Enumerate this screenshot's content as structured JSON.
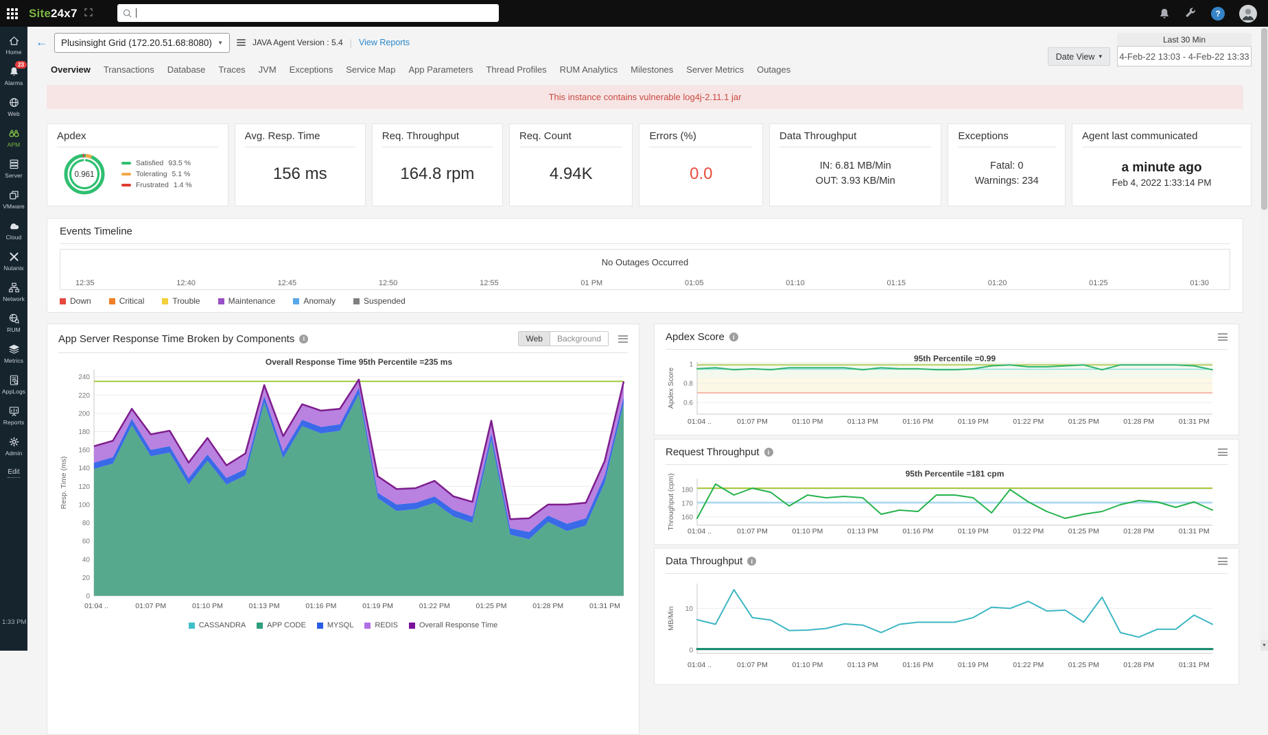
{
  "topbar": {
    "logo_site": "Site",
    "logo_suffix": "24x7",
    "search_value": ""
  },
  "sidebar": {
    "items": [
      "Home",
      "Alarms",
      "Web",
      "APM",
      "Server",
      "VMware",
      "Cloud",
      "Nutanix",
      "Network",
      "RUM",
      "Metrics",
      "AppLogs",
      "Reports",
      "Admin"
    ],
    "active_item": "APM",
    "alarm_count": "23",
    "edit_label": "Edit",
    "time": "1:33 PM"
  },
  "header": {
    "monitor_name": "Plusinsight Grid (172.20.51.68:8080)",
    "agent_version": "JAVA Agent Version : 5.4",
    "view_reports": "View Reports",
    "date_view_label": "Date View",
    "range_preset": "Last 30 Min",
    "range_value": "4-Feb-22 13:03 - 4-Feb-22 13:33"
  },
  "tabs": {
    "items": [
      "Overview",
      "Transactions",
      "Database",
      "Traces",
      "JVM",
      "Exceptions",
      "Service Map",
      "App Parameters",
      "Thread Profiles",
      "RUM Analytics",
      "Milestones",
      "Server Metrics",
      "Outages"
    ],
    "active_index": 0
  },
  "banner": {
    "text": "This instance contains vulnerable log4j-2.11.1 jar",
    "bg": "#f7e5e5",
    "color": "#c8493f"
  },
  "cards": {
    "apdex": {
      "title": "Apdex",
      "gauge": {
        "score": "0.961",
        "satisfied": 93.5,
        "tolerating": 5.1,
        "frustrated": 1.4
      },
      "legend": [
        {
          "label": "Satisfied",
          "value": "93.5 %",
          "color": "#2fbf71"
        },
        {
          "label": "Tolerating",
          "value": "5.1 %",
          "color": "#f2a74b"
        },
        {
          "label": "Frustrated",
          "value": "1.4 %",
          "color": "#e03c31"
        }
      ]
    },
    "avg_resp_time": {
      "title": "Avg. Resp. Time",
      "value": "156 ms"
    },
    "req_throughput": {
      "title": "Req. Throughput",
      "value": "164.8 rpm"
    },
    "req_count": {
      "title": "Req. Count",
      "value": "4.94K"
    },
    "errors": {
      "title": "Errors (%)",
      "value": "0.0",
      "color": "#e74c3c"
    },
    "data_throughput": {
      "title": "Data Throughput",
      "line1": "IN: 6.81 MB/Min",
      "line2": "OUT: 3.93 KB/Min"
    },
    "exceptions": {
      "title": "Exceptions",
      "line1": "Fatal: 0",
      "line2": "Warnings: 234"
    },
    "agent": {
      "title": "Agent last communicated",
      "value": "a minute ago",
      "sub": "Feb 4, 2022 1:33:14 PM"
    }
  },
  "events": {
    "title": "Events Timeline",
    "message": "No Outages Occurred",
    "ticks": [
      "12:35",
      "12:40",
      "12:45",
      "12:50",
      "12:55",
      "01 PM",
      "01:05",
      "01:10",
      "01:15",
      "01:20",
      "01:25",
      "01:30"
    ],
    "legend": [
      {
        "label": "Down",
        "color": "#e5493d"
      },
      {
        "label": "Critical",
        "color": "#f07f27"
      },
      {
        "label": "Trouble",
        "color": "#f3cf3a"
      },
      {
        "label": "Maintenance",
        "color": "#9a4fc6"
      },
      {
        "label": "Anomaly",
        "color": "#58a8e8"
      },
      {
        "label": "Suspended",
        "color": "#808080"
      }
    ]
  },
  "sections": {
    "response": {
      "title": "App Server Response Time Broken by Components",
      "toggle_web": "Web",
      "toggle_background": "Background",
      "toggle_active": "Web"
    },
    "apdex_score": {
      "title": "Apdex Score"
    },
    "request_throughput": {
      "title": "Request Throughput"
    },
    "data_throughput": {
      "title": "Data Throughput"
    }
  },
  "chart_data": [
    {
      "id": "response_time",
      "type": "area",
      "title": "Overall Response Time 95th Percentile =235 ms",
      "ylabel": "Resp. Time (ms)",
      "ymin": 0,
      "ymax": 248,
      "yticks": [
        0,
        20,
        40,
        60,
        80,
        100,
        120,
        140,
        160,
        180,
        200,
        220,
        240
      ],
      "xlabels": [
        "01:04 ..",
        "01:07 PM",
        "01:10 PM",
        "01:13 PM",
        "01:16 PM",
        "01:19 PM",
        "01:22 PM",
        "01:25 PM",
        "01:28 PM",
        "01:31 PM"
      ],
      "xstep": 3,
      "hlines": [
        {
          "value": 235,
          "color": "#a2c93c",
          "width": 2
        }
      ],
      "stack": [
        {
          "name": "APP CODE",
          "color": "#57a98d",
          "values": [
            139,
            145,
            187,
            153,
            157,
            122,
            148,
            122,
            132,
            212,
            151,
            186,
            178,
            181,
            221,
            107,
            93,
            95,
            102,
            87,
            80,
            171,
            67,
            62,
            81,
            71,
            77,
            124,
            211
          ]
        },
        {
          "name": "MYSQL",
          "color": "#3a6ae8",
          "values": [
            146,
            152,
            194,
            160,
            164,
            129,
            155,
            129,
            139,
            219,
            158,
            193,
            185,
            188,
            228,
            113,
            100,
            102,
            109,
            94,
            87,
            178,
            74,
            70,
            88,
            79,
            85,
            132,
            218
          ]
        },
        {
          "name": "REDIS",
          "color": "#b981e0",
          "values": [
            164,
            170,
            205,
            177,
            181,
            146,
            173,
            143,
            156,
            231,
            175,
            210,
            203,
            205,
            237,
            131,
            117,
            118,
            126,
            109,
            103,
            192,
            84,
            85,
            100,
            100,
            102,
            148,
            235
          ]
        }
      ],
      "line": {
        "name": "Overall Response Time",
        "color": "#7d1d8d",
        "width": 2.5
      },
      "legend": [
        {
          "label": "CASSANDRA",
          "color": "#40c0c8"
        },
        {
          "label": "APP CODE",
          "color": "#2f9e7d"
        },
        {
          "label": "MYSQL",
          "color": "#2b5ce6"
        },
        {
          "label": "REDIS",
          "color": "#b06fe3"
        },
        {
          "label": "Overall Response Time",
          "color": "#7a129b"
        }
      ]
    },
    {
      "id": "apdex_score",
      "type": "line",
      "title": "95th Percentile =0.99",
      "ylabel": "Apdex  Score",
      "ymin": 0.48,
      "ymax": 1.02,
      "yticks": [
        0.6,
        0.8,
        1
      ],
      "ytick_labels": [
        "0.6",
        "0.8",
        "1"
      ],
      "xlabels": [
        "01:04 ..",
        "01:07 PM",
        "01:10 PM",
        "01:13 PM",
        "01:16 PM",
        "01:19 PM",
        "01:22 PM",
        "01:25 PM",
        "01:28 PM",
        "01:31 PM"
      ],
      "xstep": 3,
      "bands": [
        {
          "from": 0.85,
          "to": 1.02,
          "color": "rgba(139,195,74,0.10)"
        },
        {
          "from": 0.7,
          "to": 0.85,
          "color": "rgba(252,243,207,0.55)"
        }
      ],
      "hlines": [
        {
          "value": 0.99,
          "color": "#a6c83d",
          "width": 1.5
        },
        {
          "value": 0.945,
          "color": "#8edde6",
          "width": 1.5
        },
        {
          "value": 0.7,
          "color": "#f0907e",
          "width": 1.2
        }
      ],
      "series": [
        {
          "name": "Apdex Score",
          "color": "#2db56e",
          "width": 2,
          "values": [
            0.95,
            0.96,
            0.94,
            0.95,
            0.94,
            0.96,
            0.96,
            0.96,
            0.96,
            0.94,
            0.96,
            0.95,
            0.95,
            0.94,
            0.94,
            0.95,
            0.98,
            0.99,
            0.97,
            0.97,
            0.98,
            0.99,
            0.94,
            0.99,
            0.99,
            0.99,
            0.99,
            0.98,
            0.94
          ]
        }
      ]
    },
    {
      "id": "request_throughput",
      "type": "line",
      "title": "95th Percentile =181 cpm",
      "ylabel": "Throughput (cpm)",
      "ymin": 154,
      "ymax": 188,
      "yticks": [
        160,
        170,
        180
      ],
      "xlabels": [
        "01:04 ..",
        "01:07 PM",
        "01:10 PM",
        "01:13 PM",
        "01:16 PM",
        "01:19 PM",
        "01:22 PM",
        "01:25 PM",
        "01:28 PM",
        "01:31 PM"
      ],
      "xstep": 3,
      "hlines": [
        {
          "value": 181,
          "color": "#a6c83d",
          "width": 2
        },
        {
          "value": 170.5,
          "color": "#a8d8f0",
          "width": 2.5
        }
      ],
      "series": [
        {
          "name": "Request Throughput",
          "color": "#24b24b",
          "width": 2,
          "values": [
            159,
            184,
            176,
            181,
            178,
            168,
            176,
            174,
            175,
            174,
            162,
            165,
            164,
            176,
            176,
            174,
            163,
            180,
            171,
            164,
            159,
            162,
            164,
            169,
            172,
            171,
            167,
            171,
            165
          ]
        }
      ]
    },
    {
      "id": "data_throughput",
      "type": "line",
      "ylabel": "MB/Min",
      "ymin": -0.8,
      "ymax": 16,
      "yticks": [
        0,
        10
      ],
      "xlabels": [
        "01:04 ..",
        "01:07 PM",
        "01:10 PM",
        "01:13 PM",
        "01:16 PM",
        "01:19 PM",
        "01:22 PM",
        "01:25 PM",
        "01:28 PM",
        "01:31 PM"
      ],
      "xstep": 3,
      "series": [
        {
          "name": "IN",
          "color": "#3cb6c3",
          "width": 2,
          "values": [
            7.3,
            6.2,
            14.5,
            7.8,
            7.2,
            4.7,
            4.8,
            5.2,
            6.3,
            6.0,
            4.2,
            6.2,
            6.7,
            6.7,
            6.7,
            7.8,
            10.3,
            10.0,
            11.7,
            9.4,
            9.6,
            6.7,
            12.7,
            4.2,
            3.1,
            5.0,
            5.0,
            8.4,
            6.2
          ]
        },
        {
          "name": "OUT",
          "color": "#13886b",
          "width": 3,
          "flat": 0.25
        }
      ]
    }
  ]
}
